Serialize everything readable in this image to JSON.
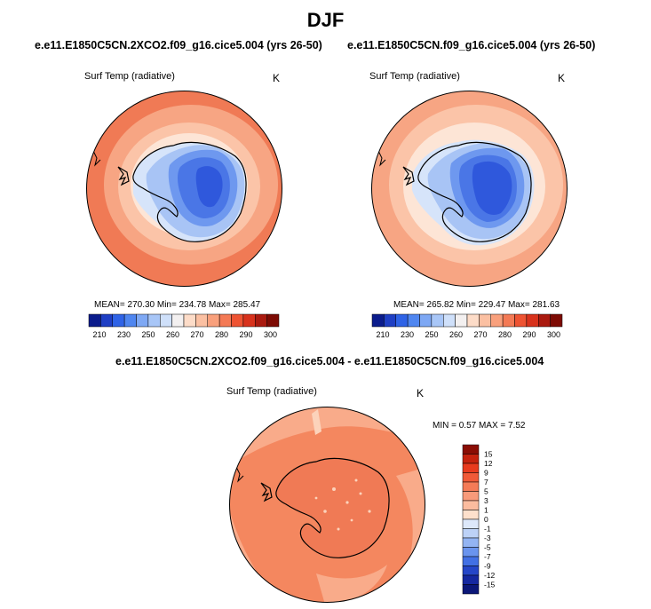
{
  "figure_title": "DJF",
  "panels": [
    {
      "title": "e.e11.E1850C5CN.2XCO2.f09_g16.cice5.004 (yrs 26-50)",
      "variable": "Surf Temp (radiative)",
      "units": "K",
      "stats_text": "MEAN= 270.30  Min= 234.78  Max= 285.47"
    },
    {
      "title": "e.e11.E1850C5CN.f09_g16.cice5.004 (yrs 26-50)",
      "variable": "Surf Temp (radiative)",
      "units": "K",
      "stats_text": "MEAN= 265.82  Min= 229.47  Max= 281.63"
    },
    {
      "title": "e.e11.E1850C5CN.2XCO2.f09_g16.cice5.004 - e.e11.E1850C5CN.f09_g16.cice5.004",
      "variable": "Surf Temp (radiative)",
      "units": "K",
      "stats_text": "MIN =   0.57 MAX =   7.52"
    }
  ],
  "abs_colorbar": {
    "labels": [
      "210",
      "230",
      "250",
      "260",
      "270",
      "280",
      "290",
      "300"
    ],
    "colors": [
      "#0b1c8c",
      "#1f3fc4",
      "#2f63e6",
      "#4f86f0",
      "#7ea8f4",
      "#a8c6f7",
      "#cfe0fa",
      "#f3f0f0",
      "#fddcc8",
      "#fbc0a2",
      "#f9a07c",
      "#f47a55",
      "#ee5332",
      "#d8321c",
      "#aa1a0f",
      "#7d0b04"
    ]
  },
  "diff_colorbar": {
    "labels": [
      "15",
      "12",
      "9",
      "7",
      "5",
      "3",
      "1",
      "0",
      "-1",
      "-3",
      "-5",
      "-7",
      "-9",
      "-12",
      "-15"
    ],
    "colors": [
      "#8a0d04",
      "#c5220e",
      "#e83b1e",
      "#f05a38",
      "#f47b57",
      "#f89a7a",
      "#fbbc9f",
      "#fde0cc",
      "#dde8fa",
      "#bdd2f7",
      "#93b4f3",
      "#6a94ee",
      "#4270e4",
      "#2546c8",
      "#1528a0",
      "#0b1778"
    ]
  },
  "map_colors": {
    "ocean_outer": "#f07a55",
    "ocean_mid": "#f7a583",
    "ocean_inner": "#fbc4a8",
    "sea_ice_edge": "#fde5d6",
    "ice_shelf": "#d6e4fa",
    "coast_ice": "#a8c4f5",
    "plateau_1": "#6e98ef",
    "plateau_2": "#4a76e6",
    "plateau_3": "#2f58dc",
    "diff_ocean": "#f4875f",
    "diff_ocean_light": "#f9ab8a",
    "diff_land": "#f07a55",
    "diff_patch": "#fcd3bb"
  }
}
